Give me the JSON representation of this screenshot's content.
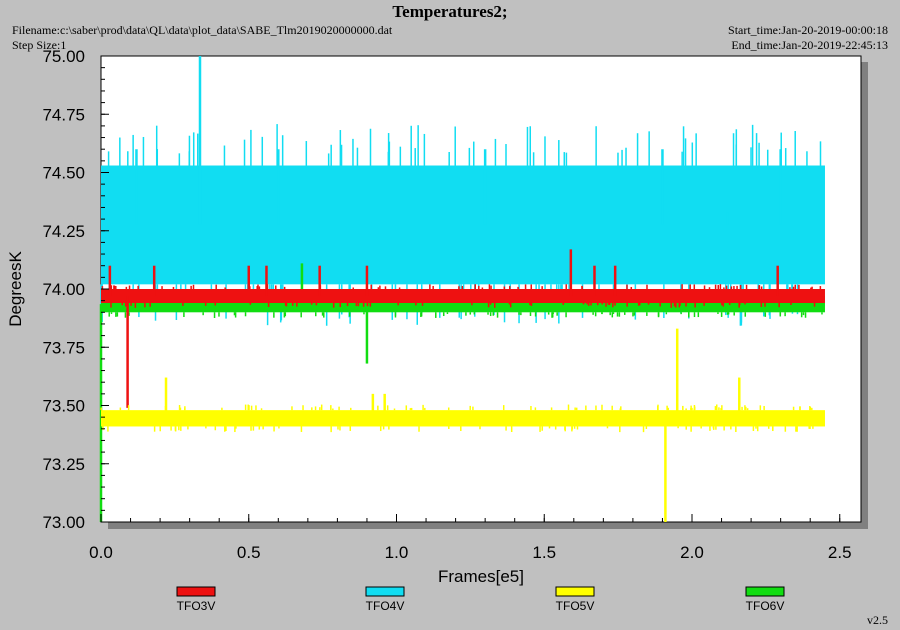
{
  "header": {
    "title": "Temperatures2;",
    "filename": "Filename:c:\\saber\\prod\\data\\QL\\data\\plot_data\\SABE_Tlm2019020000000.dat",
    "step_size": "Step Size:1",
    "start_time": "Start_time:Jan-20-2019-00:00:18",
    "end_time": "End_time:Jan-20-2019-22:45:13",
    "version": "v2.5"
  },
  "chart_data": {
    "type": "line",
    "title": "Temperatures2;",
    "xlabel": "Frames[e5]",
    "ylabel": "DegreesK",
    "xlim": [
      0,
      2.6
    ],
    "ylim": [
      73.0,
      75.0
    ],
    "x_ticks": [
      "0.0",
      "0.5",
      "1.0",
      "1.5",
      "2.0",
      "2.5"
    ],
    "y_ticks": [
      "73.00",
      "73.25",
      "73.50",
      "73.75",
      "74.00",
      "74.25",
      "74.50",
      "74.75",
      "75.00"
    ],
    "legend_position": "bottom",
    "grid": false,
    "series": [
      {
        "name": "TFO3V",
        "color": "#ee1111",
        "x_range": [
          0,
          2.45
        ],
        "base_band": [
          73.94,
          74.0
        ],
        "spikes": [
          {
            "x": 0.03,
            "y": 74.1
          },
          {
            "x": 0.09,
            "y": 73.49
          },
          {
            "x": 0.18,
            "y": 74.1
          },
          {
            "x": 0.5,
            "y": 74.1
          },
          {
            "x": 0.56,
            "y": 74.1
          },
          {
            "x": 0.74,
            "y": 74.1
          },
          {
            "x": 0.9,
            "y": 74.1
          },
          {
            "x": 1.59,
            "y": 74.17
          },
          {
            "x": 1.67,
            "y": 74.1
          },
          {
            "x": 1.74,
            "y": 74.1
          },
          {
            "x": 2.29,
            "y": 74.1
          }
        ]
      },
      {
        "name": "TFO4V",
        "color": "#11ddf2",
        "x_range": [
          0,
          2.45
        ],
        "base_band": [
          74.02,
          74.53
        ],
        "spikes": [
          {
            "x": 0.335,
            "y": 75.0
          },
          {
            "x": 0.12,
            "y": 74.6
          },
          {
            "x": 0.6,
            "y": 74.6
          },
          {
            "x": 1.3,
            "y": 74.6
          },
          {
            "x": 1.9,
            "y": 74.6
          },
          {
            "x": 2.3,
            "y": 74.6
          },
          {
            "x": 2.12,
            "y": 74.33
          }
        ]
      },
      {
        "name": "TFO5V",
        "color": "#ffff00",
        "x_range": [
          0,
          2.45
        ],
        "base_band": [
          73.41,
          73.48
        ],
        "spikes": [
          {
            "x": 0.22,
            "y": 73.62
          },
          {
            "x": 0.92,
            "y": 73.55
          },
          {
            "x": 0.96,
            "y": 73.55
          },
          {
            "x": 1.95,
            "y": 73.83
          },
          {
            "x": 2.16,
            "y": 73.62
          },
          {
            "x": 1.91,
            "y": 73.0
          }
        ]
      },
      {
        "name": "TFO6V",
        "color": "#11dd11",
        "x_range": [
          0,
          2.45
        ],
        "base_band": [
          73.9,
          73.97
        ],
        "spikes": [
          {
            "x": 0.9,
            "y": 73.68
          },
          {
            "x": 0.68,
            "y": 74.11
          },
          {
            "x": 0.0,
            "y": 73.0
          }
        ]
      }
    ]
  }
}
